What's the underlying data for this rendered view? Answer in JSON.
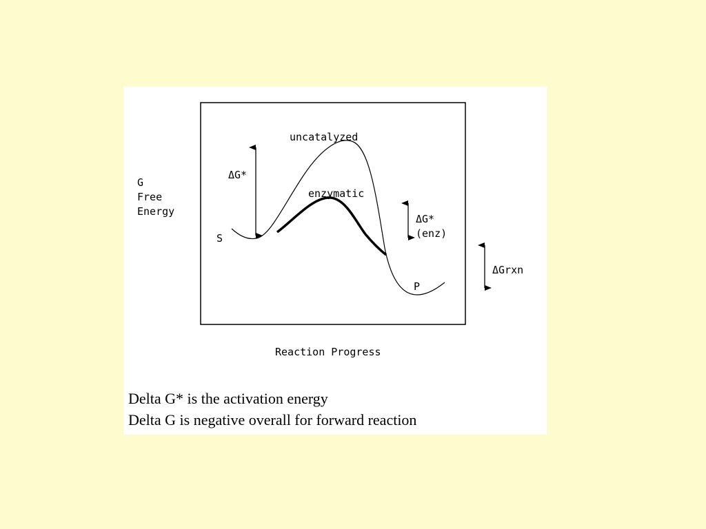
{
  "diagram": {
    "y_axis_label": [
      "G",
      "Free",
      "Energy"
    ],
    "x_axis_label": "Reaction Progress",
    "curve_labels": {
      "uncatalyzed": "uncatalyzed",
      "enzymatic": "enzymatic"
    },
    "state_labels": {
      "substrate": "S",
      "product": "P"
    },
    "arrows": {
      "activation": "ΔG*",
      "enzyme_activation": [
        "ΔG*",
        "(enz)"
      ],
      "reaction": "ΔGrxn"
    }
  },
  "caption": [
    "Delta G* is the activation energy",
    "Delta G is negative overall for forward reaction"
  ]
}
